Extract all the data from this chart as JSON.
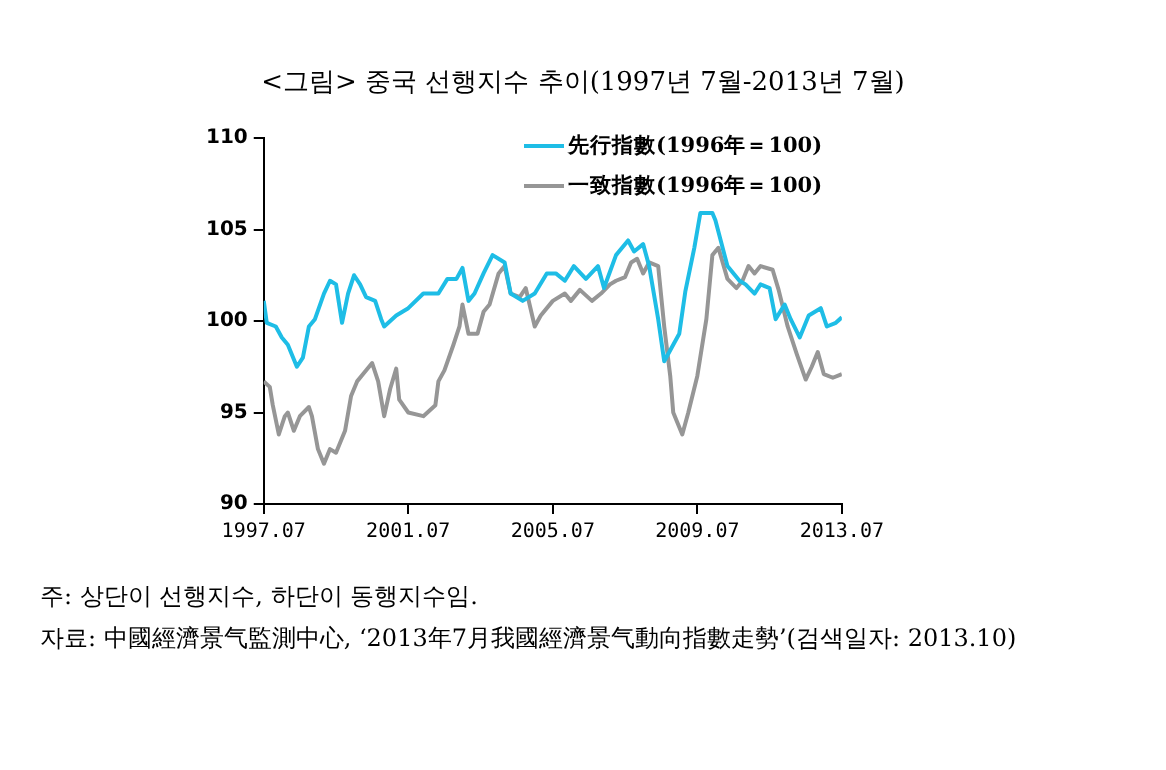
{
  "chart_data": {
    "type": "line",
    "title": "<그림> 중국 선행지수 추이(1997년 7월-2013년 7월)",
    "annotations": [
      "주: 상단이 선행지수, 하단이 동행지수임.",
      "자료: 中國經濟景气監測中心, ‘2013年7月我國經濟景气動向指數走勢’(검색일자: 2013.10)"
    ],
    "xlim": [
      "1997-07",
      "2013-07"
    ],
    "xticks": [
      {
        "value": "1997-07",
        "label": "1997.07"
      },
      {
        "value": "2001-07",
        "label": "2001.07"
      },
      {
        "value": "2005-07",
        "label": "2005.07"
      },
      {
        "value": "2009-07",
        "label": "2009.07"
      },
      {
        "value": "2013-07",
        "label": "2013.07"
      }
    ],
    "ylim": [
      90,
      110
    ],
    "yticks": [
      90,
      95,
      100,
      105,
      110
    ],
    "grid": false,
    "legend": "top right",
    "marker": "none",
    "line_style": "solid",
    "series": [
      {
        "name": "先行指數(1996年＝100)",
        "color": "#1ebde6",
        "x": [
          "1997-07",
          "1997-08",
          "1997-11",
          "1998-01",
          "1998-03",
          "1998-06",
          "1998-08",
          "1998-10",
          "1998-12",
          "1999-03",
          "1999-05",
          "1999-07",
          "1999-09",
          "1999-11",
          "2000-01",
          "2000-03",
          "2000-05",
          "2000-08",
          "2000-10",
          "2000-11",
          "2001-03",
          "2001-07",
          "2001-12",
          "2002-05",
          "2002-08",
          "2002-11",
          "2003-01",
          "2003-03",
          "2003-05",
          "2003-08",
          "2003-11",
          "2004-03",
          "2004-05",
          "2004-09",
          "2005-01",
          "2005-05",
          "2005-08",
          "2005-11",
          "2006-02",
          "2006-06",
          "2006-10",
          "2006-12",
          "2007-04",
          "2007-08",
          "2007-10",
          "2008-01",
          "2008-03",
          "2008-06",
          "2008-08",
          "2008-11",
          "2009-01",
          "2009-03",
          "2009-06",
          "2009-08",
          "2009-12",
          "2010-01",
          "2010-05",
          "2010-09",
          "2010-11",
          "2011-02",
          "2011-04",
          "2011-07",
          "2011-09",
          "2011-12",
          "2012-02",
          "2012-05",
          "2012-08",
          "2012-12",
          "2013-02",
          "2013-05",
          "2013-07"
        ],
        "values": [
          101.1,
          99.9,
          99.7,
          99.1,
          98.7,
          97.5,
          98.0,
          99.7,
          100.1,
          101.5,
          102.2,
          102.0,
          99.9,
          101.5,
          102.5,
          102.0,
          101.3,
          101.1,
          100.1,
          99.7,
          100.3,
          100.7,
          101.5,
          101.5,
          102.3,
          102.3,
          102.9,
          101.1,
          101.5,
          102.6,
          103.6,
          103.2,
          101.5,
          101.1,
          101.5,
          102.6,
          102.6,
          102.2,
          103.0,
          102.3,
          103.0,
          101.8,
          103.6,
          104.4,
          103.8,
          104.2,
          103.0,
          100.1,
          97.8,
          98.7,
          99.3,
          101.6,
          104.0,
          105.9,
          105.9,
          105.5,
          103.0,
          102.2,
          102.0,
          101.5,
          102.0,
          101.8,
          100.1,
          100.9,
          100.1,
          99.1,
          100.3,
          100.7,
          99.7,
          99.9,
          100.2
        ]
      },
      {
        "name": "一致指數(1996年＝100)",
        "color": "#969696",
        "x": [
          "1997-07",
          "1997-09",
          "1997-10",
          "1997-12",
          "1998-02",
          "1998-03",
          "1998-05",
          "1998-07",
          "1998-10",
          "1998-11",
          "1999-01",
          "1999-03",
          "1999-05",
          "1999-07",
          "1999-10",
          "1999-12",
          "2000-02",
          "2000-04",
          "2000-07",
          "2000-09",
          "2000-11",
          "2001-01",
          "2001-03",
          "2001-04",
          "2001-07",
          "2001-12",
          "2002-04",
          "2002-05",
          "2002-07",
          "2002-10",
          "2002-12",
          "2003-01",
          "2003-03",
          "2003-06",
          "2003-08",
          "2003-10",
          "2004-01",
          "2004-03",
          "2004-05",
          "2004-08",
          "2004-10",
          "2005-01",
          "2005-03",
          "2005-07",
          "2005-11",
          "2006-01",
          "2006-04",
          "2006-08",
          "2006-11",
          "2007-02",
          "2007-04",
          "2007-07",
          "2007-09",
          "2007-11",
          "2008-01",
          "2008-03",
          "2008-06",
          "2008-08",
          "2008-10",
          "2008-11",
          "2009-02",
          "2009-04",
          "2009-07",
          "2009-10",
          "2009-12",
          "2010-02",
          "2010-05",
          "2010-08",
          "2010-10",
          "2010-12",
          "2011-02",
          "2011-04",
          "2011-08",
          "2011-10",
          "2012-01",
          "2012-04",
          "2012-07",
          "2012-09",
          "2012-11",
          "2013-01",
          "2013-04",
          "2013-07"
        ],
        "values": [
          96.7,
          96.4,
          95.4,
          93.8,
          94.8,
          95.0,
          94.0,
          94.8,
          95.3,
          94.8,
          93.0,
          92.2,
          93.0,
          92.8,
          94.0,
          95.9,
          96.7,
          97.1,
          97.7,
          96.7,
          94.8,
          96.3,
          97.4,
          95.7,
          95.0,
          94.8,
          95.4,
          96.7,
          97.3,
          98.7,
          99.7,
          100.9,
          99.3,
          99.3,
          100.5,
          100.9,
          102.6,
          103.0,
          101.5,
          101.3,
          101.8,
          99.7,
          100.3,
          101.1,
          101.5,
          101.1,
          101.7,
          101.1,
          101.5,
          102.0,
          102.2,
          102.4,
          103.2,
          103.4,
          102.6,
          103.2,
          103.0,
          99.7,
          97.0,
          95.0,
          93.8,
          95.0,
          97.0,
          100.1,
          103.6,
          104.0,
          102.3,
          101.8,
          102.2,
          103.0,
          102.6,
          103.0,
          102.8,
          101.7,
          99.7,
          98.2,
          96.8,
          97.5,
          98.3,
          97.1,
          96.9,
          97.1
        ]
      }
    ]
  }
}
